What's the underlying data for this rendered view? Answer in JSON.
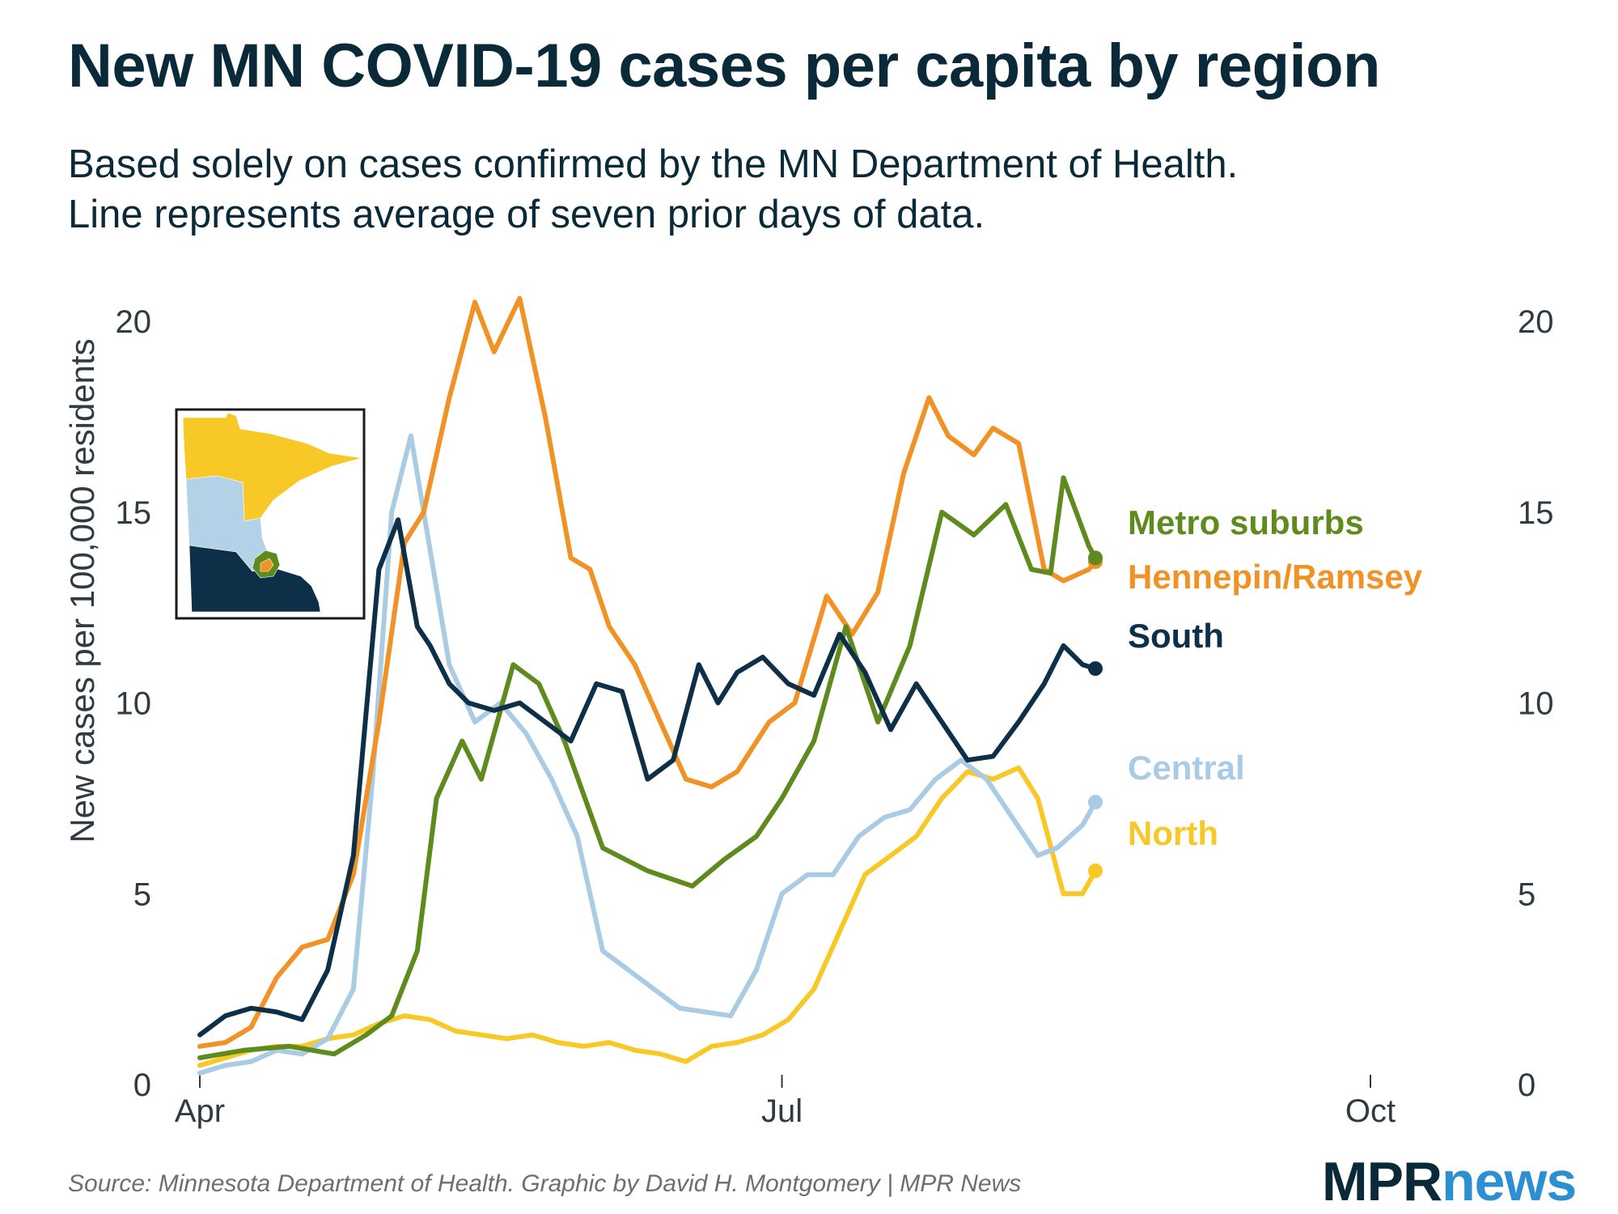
{
  "title": "New MN COVID-19 cases per capita by region",
  "subtitle": [
    "Based solely on cases confirmed by the MN Department of Health.",
    "Line represents average of seven prior days of data."
  ],
  "source": "Source: Minnesota Department of Health. Graphic by David H. Montgomery | MPR News",
  "logo": {
    "part1": "MPR",
    "part2": "news"
  },
  "colors": {
    "text": "#0b2a39",
    "axis": "#2f3b42",
    "source": "#6b6f72"
  },
  "chart_data": {
    "type": "line",
    "ylabel": "New cases per 100,000 residents",
    "xlabel": "",
    "ylim": [
      0,
      20
    ],
    "xlim": [
      "2020-04-01",
      "2020-10-01"
    ],
    "yticks": [
      0,
      5,
      10,
      15,
      20
    ],
    "xticks": [
      {
        "label": "Apr",
        "date": "2020-04-01"
      },
      {
        "label": "Jul",
        "date": "2020-07-01"
      },
      {
        "label": "Oct",
        "date": "2020-10-01"
      }
    ],
    "grid": false,
    "legend": "direct labels at line ends (right)",
    "inset": "map of Minnesota regions (North, Central, South, Metro suburbs, Hennepin/Ramsey)",
    "series": [
      {
        "name": "Metro suburbs",
        "color": "#5f8a1d",
        "x": [
          "2020-04-01",
          "2020-04-08",
          "2020-04-15",
          "2020-04-22",
          "2020-04-27",
          "2020-05-01",
          "2020-05-05",
          "2020-05-08",
          "2020-05-12",
          "2020-05-15",
          "2020-05-20",
          "2020-05-24",
          "2020-05-28",
          "2020-06-03",
          "2020-06-10",
          "2020-06-17",
          "2020-06-22",
          "2020-06-27",
          "2020-07-01",
          "2020-07-06",
          "2020-07-11",
          "2020-07-16",
          "2020-07-21",
          "2020-07-26",
          "2020-07-31",
          "2020-08-05",
          "2020-08-09",
          "2020-08-12",
          "2020-08-14",
          "2020-08-18",
          "2020-08-19"
        ],
        "values": [
          0.7,
          0.9,
          1.0,
          0.8,
          1.3,
          1.8,
          3.5,
          7.5,
          9.0,
          8.0,
          11.0,
          10.5,
          9.0,
          6.2,
          5.6,
          5.2,
          5.9,
          6.5,
          7.5,
          9.0,
          12.0,
          9.5,
          11.5,
          15.0,
          14.4,
          15.2,
          13.5,
          13.4,
          15.9,
          14.1,
          13.8
        ]
      },
      {
        "name": "Hennepin/Ramsey",
        "color": "#f09225",
        "x": [
          "2020-04-01",
          "2020-04-05",
          "2020-04-09",
          "2020-04-13",
          "2020-04-17",
          "2020-04-21",
          "2020-04-25",
          "2020-04-29",
          "2020-05-03",
          "2020-05-06",
          "2020-05-10",
          "2020-05-14",
          "2020-05-17",
          "2020-05-21",
          "2020-05-25",
          "2020-05-29",
          "2020-06-01",
          "2020-06-04",
          "2020-06-08",
          "2020-06-12",
          "2020-06-16",
          "2020-06-20",
          "2020-06-24",
          "2020-06-29",
          "2020-07-03",
          "2020-07-08",
          "2020-07-12",
          "2020-07-16",
          "2020-07-20",
          "2020-07-24",
          "2020-07-27",
          "2020-07-31",
          "2020-08-03",
          "2020-08-07",
          "2020-08-11",
          "2020-08-14",
          "2020-08-18",
          "2020-08-19"
        ],
        "values": [
          1.0,
          1.1,
          1.5,
          2.8,
          3.6,
          3.8,
          5.5,
          9.5,
          14.2,
          15.0,
          18.0,
          20.5,
          19.2,
          20.6,
          17.5,
          13.8,
          13.5,
          12.0,
          11.0,
          9.5,
          8.0,
          7.8,
          8.2,
          9.5,
          10.0,
          12.8,
          11.8,
          12.9,
          16.0,
          18.0,
          17.0,
          16.5,
          17.2,
          16.8,
          13.5,
          13.2,
          13.5,
          13.7
        ]
      },
      {
        "name": "South",
        "color": "#0d3048",
        "x": [
          "2020-04-01",
          "2020-04-05",
          "2020-04-09",
          "2020-04-13",
          "2020-04-17",
          "2020-04-21",
          "2020-04-25",
          "2020-04-29",
          "2020-05-02",
          "2020-05-05",
          "2020-05-07",
          "2020-05-10",
          "2020-05-13",
          "2020-05-17",
          "2020-05-21",
          "2020-05-25",
          "2020-05-29",
          "2020-06-02",
          "2020-06-06",
          "2020-06-10",
          "2020-06-14",
          "2020-06-18",
          "2020-06-21",
          "2020-06-24",
          "2020-06-28",
          "2020-07-02",
          "2020-07-06",
          "2020-07-10",
          "2020-07-14",
          "2020-07-18",
          "2020-07-22",
          "2020-07-26",
          "2020-07-30",
          "2020-08-03",
          "2020-08-07",
          "2020-08-11",
          "2020-08-14",
          "2020-08-17",
          "2020-08-19"
        ],
        "values": [
          1.3,
          1.8,
          2.0,
          1.9,
          1.7,
          3.0,
          6.0,
          13.5,
          14.8,
          12.0,
          11.5,
          10.5,
          10.0,
          9.8,
          10.0,
          9.5,
          9.0,
          10.5,
          10.3,
          8.0,
          8.5,
          11.0,
          10.0,
          10.8,
          11.2,
          10.5,
          10.2,
          11.8,
          10.8,
          9.3,
          10.5,
          9.5,
          8.5,
          8.6,
          9.5,
          10.5,
          11.5,
          11.0,
          10.9
        ]
      },
      {
        "name": "Central",
        "color": "#a9cbe3",
        "x": [
          "2020-04-01",
          "2020-04-05",
          "2020-04-09",
          "2020-04-13",
          "2020-04-17",
          "2020-04-21",
          "2020-04-25",
          "2020-04-28",
          "2020-05-01",
          "2020-05-04",
          "2020-05-07",
          "2020-05-10",
          "2020-05-14",
          "2020-05-18",
          "2020-05-22",
          "2020-05-26",
          "2020-05-30",
          "2020-06-03",
          "2020-06-07",
          "2020-06-11",
          "2020-06-15",
          "2020-06-19",
          "2020-06-23",
          "2020-06-27",
          "2020-07-01",
          "2020-07-05",
          "2020-07-09",
          "2020-07-13",
          "2020-07-17",
          "2020-07-21",
          "2020-07-25",
          "2020-07-29",
          "2020-08-02",
          "2020-08-06",
          "2020-08-10",
          "2020-08-13",
          "2020-08-17",
          "2020-08-19"
        ],
        "values": [
          0.3,
          0.5,
          0.6,
          0.9,
          0.8,
          1.2,
          2.5,
          8.0,
          15.0,
          17.0,
          14.0,
          11.0,
          9.5,
          10.0,
          9.2,
          8.0,
          6.5,
          3.5,
          3.0,
          2.5,
          2.0,
          1.9,
          1.8,
          3.0,
          5.0,
          5.5,
          5.5,
          6.5,
          7.0,
          7.2,
          8.0,
          8.5,
          8.0,
          7.0,
          6.0,
          6.2,
          6.8,
          7.4
        ]
      },
      {
        "name": "North",
        "color": "#f8c826",
        "x": [
          "2020-04-01",
          "2020-04-05",
          "2020-04-09",
          "2020-04-13",
          "2020-04-17",
          "2020-04-21",
          "2020-04-25",
          "2020-04-29",
          "2020-05-03",
          "2020-05-07",
          "2020-05-11",
          "2020-05-15",
          "2020-05-19",
          "2020-05-23",
          "2020-05-27",
          "2020-05-31",
          "2020-06-04",
          "2020-06-08",
          "2020-06-12",
          "2020-06-16",
          "2020-06-20",
          "2020-06-24",
          "2020-06-28",
          "2020-07-02",
          "2020-07-06",
          "2020-07-10",
          "2020-07-14",
          "2020-07-18",
          "2020-07-22",
          "2020-07-26",
          "2020-07-30",
          "2020-08-03",
          "2020-08-07",
          "2020-08-10",
          "2020-08-14",
          "2020-08-17",
          "2020-08-19"
        ],
        "values": [
          0.5,
          0.7,
          0.9,
          1.0,
          1.0,
          1.2,
          1.3,
          1.6,
          1.8,
          1.7,
          1.4,
          1.3,
          1.2,
          1.3,
          1.1,
          1.0,
          1.1,
          0.9,
          0.8,
          0.6,
          1.0,
          1.1,
          1.3,
          1.7,
          2.5,
          4.0,
          5.5,
          6.0,
          6.5,
          7.5,
          8.2,
          8.0,
          8.3,
          7.5,
          5.0,
          5.0,
          5.6
        ]
      }
    ]
  }
}
